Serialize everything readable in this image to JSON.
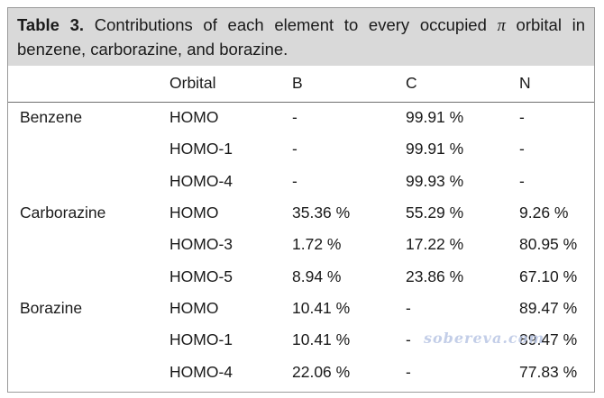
{
  "caption": {
    "label": "Table 3.",
    "text_before": " Contributions of each element to every occupied ",
    "symbol": "π",
    "text_after": " orbital in benzene, carborazine, and borazine."
  },
  "table": {
    "headers": [
      "",
      "Orbital",
      "B",
      "C",
      "N"
    ],
    "rows": [
      [
        "Benzene",
        "HOMO",
        "-",
        "99.91 %",
        "-"
      ],
      [
        "",
        "HOMO-1",
        "-",
        "99.91 %",
        "-"
      ],
      [
        "",
        "HOMO-4",
        "-",
        "99.93 %",
        "-"
      ],
      [
        "Carborazine",
        "HOMO",
        "35.36 %",
        "55.29 %",
        "9.26 %"
      ],
      [
        "",
        "HOMO-3",
        "1.72 %",
        "17.22 %",
        "80.95 %"
      ],
      [
        "",
        "HOMO-5",
        "8.94 %",
        "23.86 %",
        "67.10 %"
      ],
      [
        "Borazine",
        "HOMO",
        "10.41 %",
        "-",
        "89.47 %"
      ],
      [
        "",
        "HOMO-1",
        "10.41 %",
        "-",
        "89.47 %"
      ],
      [
        "",
        "HOMO-4",
        "22.06 %",
        "-",
        "77.83 %"
      ]
    ]
  },
  "watermark": "sobereva.com"
}
